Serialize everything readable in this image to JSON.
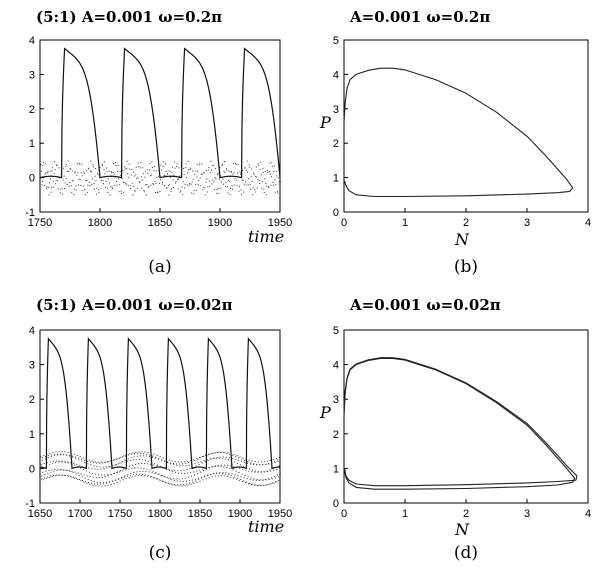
{
  "chart_data": [
    {
      "type": "line",
      "caption": "(a)",
      "title": "(5:1)    A=0.001    ω=0.2π",
      "xlabel": "time",
      "ylabel": "",
      "xlim": [
        1750,
        1950
      ],
      "ylim": [
        -1,
        4
      ],
      "xticks": [
        1750,
        1800,
        1850,
        1900,
        1950
      ],
      "yticks": [
        -1,
        0,
        1,
        2,
        3,
        4
      ],
      "period": 50,
      "grid": false,
      "series": [
        {
          "style": "solid",
          "peak": 3.75,
          "trough": 0.0,
          "peak_times": [
            1767,
            1817,
            1867,
            1917
          ],
          "trough_times": [
            1750,
            1800,
            1850,
            1900
          ]
        },
        {
          "style": "dotted",
          "min": -0.5,
          "max": 0.5,
          "forcing_period": 10
        }
      ]
    },
    {
      "type": "line",
      "caption": "(b)",
      "title": "A=0.001    ω=0.2π",
      "xlabel": "N",
      "ylabel": "P",
      "xlim": [
        0,
        4
      ],
      "ylim": [
        0,
        5
      ],
      "xticks": [
        0,
        1,
        2,
        3,
        4
      ],
      "yticks": [
        0,
        1,
        2,
        3,
        4,
        5
      ],
      "grid": false,
      "series": [
        {
          "points": [
            [
              0.0,
              2.6
            ],
            [
              0.02,
              3.2
            ],
            [
              0.05,
              3.6
            ],
            [
              0.1,
              3.85
            ],
            [
              0.2,
              4.0
            ],
            [
              0.4,
              4.12
            ],
            [
              0.6,
              4.18
            ],
            [
              0.8,
              4.18
            ],
            [
              1.0,
              4.13
            ],
            [
              1.5,
              3.85
            ],
            [
              2.0,
              3.45
            ],
            [
              2.5,
              2.9
            ],
            [
              3.0,
              2.2
            ],
            [
              3.3,
              1.65
            ],
            [
              3.5,
              1.25
            ],
            [
              3.65,
              0.95
            ],
            [
              3.75,
              0.7
            ],
            [
              3.7,
              0.6
            ],
            [
              3.5,
              0.56
            ],
            [
              3.0,
              0.52
            ],
            [
              2.0,
              0.47
            ],
            [
              1.0,
              0.45
            ],
            [
              0.5,
              0.45
            ],
            [
              0.2,
              0.5
            ],
            [
              0.08,
              0.62
            ],
            [
              0.03,
              0.78
            ],
            [
              0.01,
              0.9
            ]
          ]
        }
      ]
    },
    {
      "type": "line",
      "caption": "(c)",
      "title": "(5:1)    A=0.001    ω=0.02π",
      "xlabel": "time",
      "ylabel": "",
      "xlim": [
        1650,
        1950
      ],
      "ylim": [
        -1,
        4
      ],
      "xticks": [
        1650,
        1700,
        1750,
        1800,
        1850,
        1900,
        1950
      ],
      "yticks": [
        -1,
        0,
        1,
        2,
        3,
        4
      ],
      "period": 50,
      "grid": false,
      "series": [
        {
          "style": "solid",
          "peak": 3.75,
          "trough": 0.0,
          "peak_times": [
            1656,
            1706,
            1756,
            1806,
            1856,
            1906
          ],
          "trough_times": [
            1690,
            1740,
            1790,
            1840,
            1890,
            1940
          ]
        },
        {
          "style": "dotted",
          "min": -0.5,
          "max": 0.5,
          "forcing_period": 100
        }
      ]
    },
    {
      "type": "line",
      "caption": "(d)",
      "title": "A=0.001    ω=0.02π",
      "xlabel": "N",
      "ylabel": "P",
      "xlim": [
        0,
        4
      ],
      "ylim": [
        0,
        5
      ],
      "xticks": [
        0,
        1,
        2,
        3,
        4
      ],
      "yticks": [
        0,
        1,
        2,
        3,
        4,
        5
      ],
      "grid": false,
      "series": [
        {
          "points": [
            [
              0.0,
              2.5
            ],
            [
              0.02,
              3.2
            ],
            [
              0.05,
              3.6
            ],
            [
              0.1,
              3.85
            ],
            [
              0.2,
              4.0
            ],
            [
              0.4,
              4.12
            ],
            [
              0.6,
              4.18
            ],
            [
              0.8,
              4.18
            ],
            [
              1.0,
              4.13
            ],
            [
              1.5,
              3.85
            ],
            [
              2.0,
              3.45
            ],
            [
              2.5,
              2.9
            ],
            [
              3.0,
              2.25
            ],
            [
              3.3,
              1.7
            ],
            [
              3.5,
              1.3
            ],
            [
              3.65,
              1.0
            ],
            [
              3.78,
              0.72
            ],
            [
              3.75,
              0.6
            ],
            [
              3.5,
              0.52
            ],
            [
              3.0,
              0.47
            ],
            [
              2.0,
              0.42
            ],
            [
              1.0,
              0.4
            ],
            [
              0.5,
              0.4
            ],
            [
              0.2,
              0.45
            ],
            [
              0.08,
              0.58
            ],
            [
              0.03,
              0.75
            ],
            [
              0.01,
              0.95
            ]
          ]
        },
        {
          "points": [
            [
              0.0,
              2.6
            ],
            [
              0.02,
              3.25
            ],
            [
              0.05,
              3.62
            ],
            [
              0.1,
              3.87
            ],
            [
              0.2,
              4.02
            ],
            [
              0.4,
              4.14
            ],
            [
              0.6,
              4.2
            ],
            [
              0.8,
              4.2
            ],
            [
              1.0,
              4.15
            ],
            [
              1.5,
              3.87
            ],
            [
              2.0,
              3.47
            ],
            [
              2.5,
              2.93
            ],
            [
              3.0,
              2.3
            ],
            [
              3.3,
              1.76
            ],
            [
              3.5,
              1.38
            ],
            [
              3.65,
              1.08
            ],
            [
              3.82,
              0.78
            ],
            [
              3.8,
              0.66
            ],
            [
              3.5,
              0.62
            ],
            [
              3.0,
              0.58
            ],
            [
              2.0,
              0.53
            ],
            [
              1.0,
              0.5
            ],
            [
              0.5,
              0.5
            ],
            [
              0.2,
              0.55
            ],
            [
              0.08,
              0.66
            ],
            [
              0.03,
              0.8
            ],
            [
              0.01,
              1.0
            ]
          ]
        }
      ]
    }
  ]
}
